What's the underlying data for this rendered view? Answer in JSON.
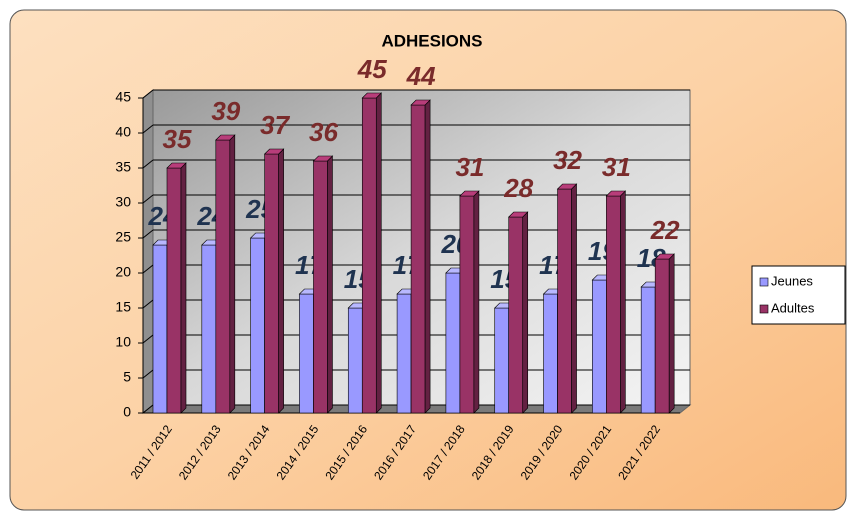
{
  "chart_data": {
    "type": "bar3d",
    "title": "ADHESIONS",
    "categories": [
      "2011 / 2012",
      "2012 / 2013",
      "2013 / 2014",
      "2014 / 2015",
      "2015 / 2016",
      "2016 / 2017",
      "2017 / 2018",
      "2018 / 2019",
      "2019 / 2020",
      "2020 / 2021",
      "2021 / 2022"
    ],
    "series": [
      {
        "name": "Jeunes",
        "color": "#9999ff",
        "label_color": "#1f3350",
        "values": [
          24,
          24,
          25,
          17,
          15,
          17,
          20,
          15,
          17,
          19,
          18
        ]
      },
      {
        "name": "Adultes",
        "color": "#993366",
        "label_color": "#7a2b2b",
        "values": [
          35,
          39,
          37,
          36,
          45,
          44,
          31,
          28,
          32,
          31,
          22
        ]
      }
    ],
    "ylim": [
      0,
      45
    ],
    "yticks": [
      0,
      5,
      10,
      15,
      20,
      25,
      30,
      35,
      40,
      45
    ],
    "grid": true,
    "legend": "right"
  }
}
